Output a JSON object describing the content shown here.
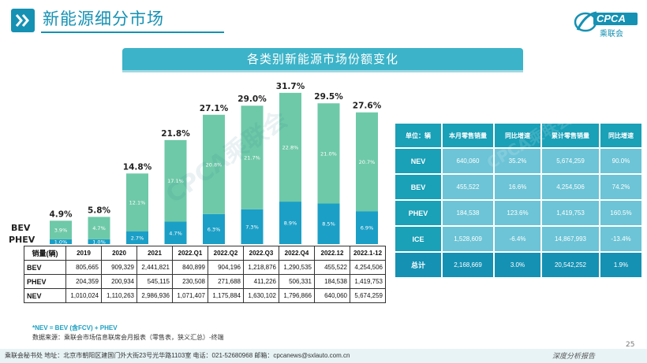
{
  "page": {
    "slide_title": "新能源细分市场",
    "banner_title": "各类别新能源市场份额变化",
    "page_number": "25",
    "footnote": "*NEV = BEV (含FCV) + PHEV",
    "source": "数据来源：乘联会市场信息联席会月报表（零售表，狭义汇总）-终端",
    "footer": "乘联会秘书处  地址：北京市朝阳区建国门外大街23号光华路1103室  电话：021-52680968  邮箱：cpcanews@sxlauto.com.cn",
    "footer_right": "深度分析报告",
    "logo_text": "CPCA",
    "logo_subtext": "乘联会",
    "watermark": "CPCA乘联会"
  },
  "icons": {
    "title_icon": "double-chevron-right-icon",
    "logo": "cpca-logo-icon"
  },
  "colors": {
    "accent": "#1591b3",
    "bev": "#6ec9a8",
    "phev": "#1b9fc6",
    "banner": "#3cb3c8",
    "table_header": "#1aa0b7",
    "table_cell": "#6cc4d6"
  },
  "chart_data": {
    "type": "bar",
    "stacked": true,
    "categories": [
      "2019",
      "2020",
      "2021",
      "2022.Q1",
      "2022.Q2",
      "2022.Q3",
      "2022.Q4",
      "2022.12",
      "2022.1-12"
    ],
    "series": [
      {
        "name": "PHEV",
        "values": [
          1.0,
          1.0,
          2.7,
          4.7,
          6.3,
          7.3,
          8.9,
          8.5,
          6.9
        ],
        "labels": [
          "1.0%",
          "1.0%",
          "2.7%",
          "4.7%",
          "6.3%",
          "7.3%",
          "8.9%",
          "8.5%",
          "6.9%"
        ]
      },
      {
        "name": "BEV",
        "values": [
          3.9,
          4.7,
          12.1,
          17.1,
          20.8,
          21.7,
          22.8,
          21.0,
          20.7
        ],
        "labels": [
          "3.9%",
          "4.7%",
          "12.1%",
          "17.1%",
          "20.8%",
          "21.7%",
          "22.8%",
          "21.0%",
          "20.7%"
        ]
      }
    ],
    "totals": [
      4.9,
      5.8,
      14.8,
      21.8,
      27.1,
      29.0,
      31.7,
      29.5,
      27.6
    ],
    "total_labels": [
      "4.9%",
      "5.8%",
      "14.8%",
      "21.8%",
      "27.1%",
      "29.0%",
      "31.7%",
      "29.5%",
      "27.6%"
    ],
    "legend": [
      "BEV",
      "PHEV"
    ],
    "title": "",
    "xlabel": "",
    "ylabel": "",
    "ylim": [
      0,
      33
    ]
  },
  "left_table": {
    "header": [
      "销量(辆)",
      "2019",
      "2020",
      "2021",
      "2022.Q1",
      "2022.Q2",
      "2022.Q3",
      "2022.Q4",
      "2022.12",
      "2022.1-12"
    ],
    "rows": [
      [
        "BEV",
        "805,665",
        "909,329",
        "2,441,821",
        "840,899",
        "904,196",
        "1,218,876",
        "1,290,535",
        "455,522",
        "4,254,506"
      ],
      [
        "PHEV",
        "204,359",
        "200,934",
        "545,115",
        "230,508",
        "271,688",
        "411,226",
        "506,331",
        "184,538",
        "1,419,753"
      ],
      [
        "NEV",
        "1,010,024",
        "1,110,263",
        "2,986,936",
        "1,071,407",
        "1,175,884",
        "1,630,102",
        "1,796,866",
        "640,060",
        "5,674,259"
      ]
    ]
  },
  "right_table": {
    "header": [
      "单位：辆",
      "本月零售销量",
      "同比增速",
      "累计零售销量",
      "同比增速"
    ],
    "rows": [
      [
        "NEV",
        "640,060",
        "35.2%",
        "5,674,259",
        "90.0%"
      ],
      [
        "BEV",
        "455,522",
        "16.6%",
        "4,254,506",
        "74.2%"
      ],
      [
        "PHEV",
        "184,538",
        "123.6%",
        "1,419,753",
        "160.5%"
      ],
      [
        "ICE",
        "1,528,609",
        "-6.4%",
        "14,867,993",
        "-13.4%"
      ],
      [
        "总计",
        "2,168,669",
        "3.0%",
        "20,542,252",
        "1.9%"
      ]
    ]
  }
}
